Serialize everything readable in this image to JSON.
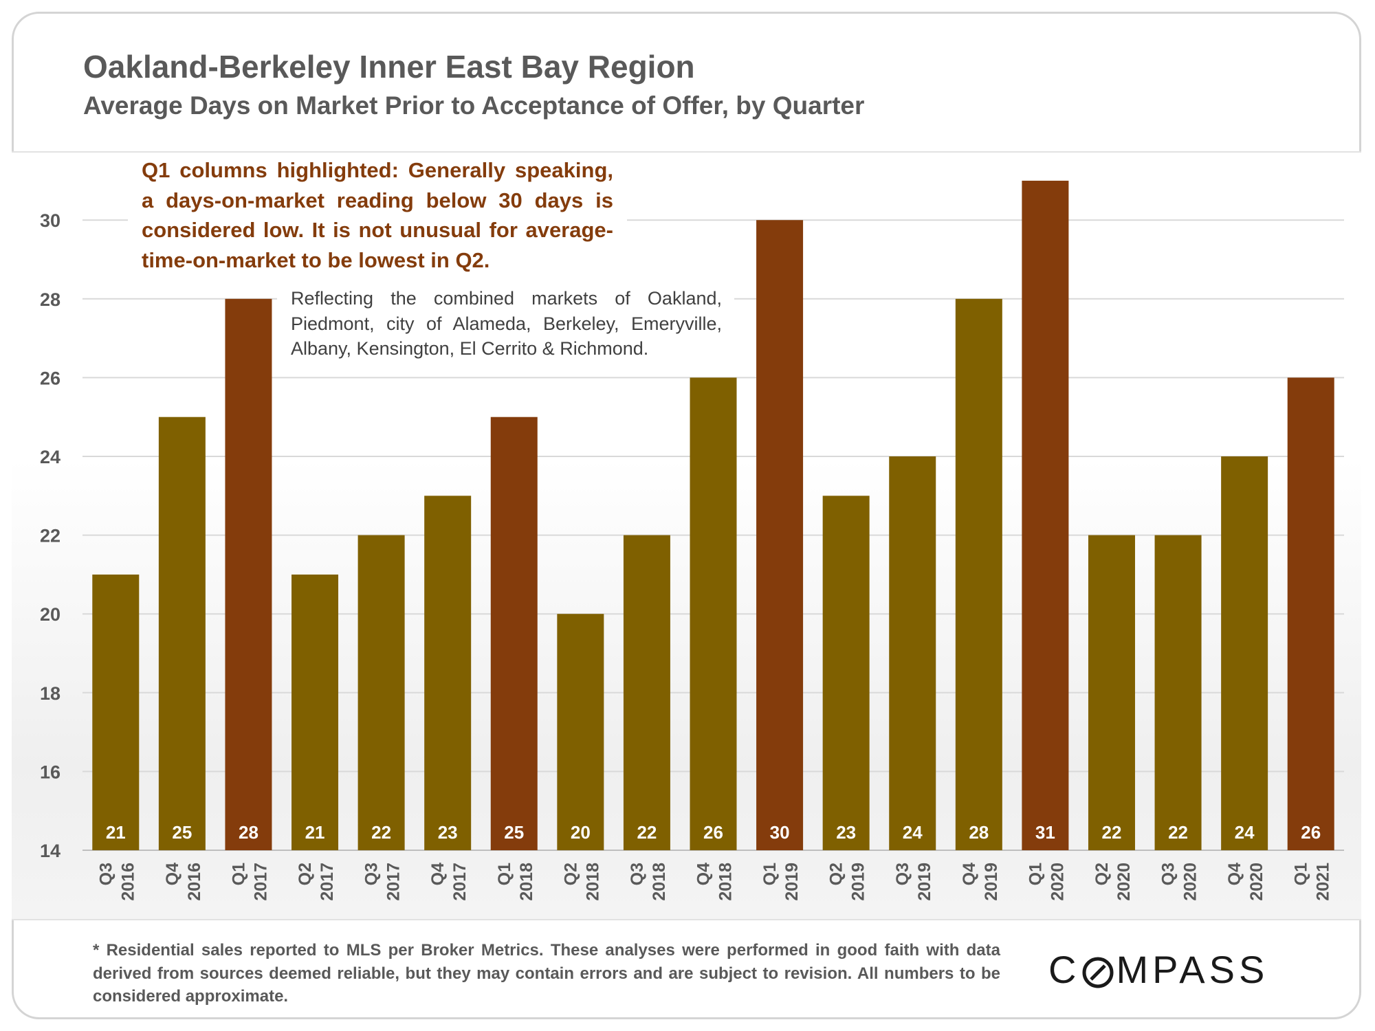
{
  "title": "Oakland-Berkeley Inner East Bay Region",
  "subtitle": "Average Days on Market Prior to Acceptance of Offer, by Quarter",
  "annotations": {
    "highlight_note": "Q1 columns highlighted: Generally speaking, a days-on-market reading below 30 days is considered low. It is not unusual for average-time-on-market to be lowest in Q2.",
    "region_note": "Reflecting the combined markets of Oakland, Piedmont, city of Alameda, Berkeley, Emeryville, Albany, Kensington, El Cerrito & Richmond."
  },
  "footnote": "* Residential sales reported to MLS per Broker Metrics. These analyses were performed in good faith with data derived from sources deemed reliable, but they may contain errors and are subject to revision. All numbers to  be considered approximate.",
  "logo": {
    "text_before": "C",
    "text_after": "MPASS",
    "icon": "compass-o-icon"
  },
  "colors": {
    "q1_bar": "#843c0c",
    "other_bar": "#7f6000",
    "grid": "#d9d9d9",
    "axis_text": "#595959",
    "bar_label": "#ffffff"
  },
  "chart_data": {
    "type": "bar",
    "title": "Oakland-Berkeley Inner East Bay Region",
    "subtitle": "Average Days on Market Prior to Acceptance of Offer, by Quarter",
    "xlabel": "",
    "ylabel": "",
    "ylim": [
      14,
      31
    ],
    "yticks": [
      14,
      16,
      18,
      20,
      22,
      24,
      26,
      28,
      30
    ],
    "grid": true,
    "legend": "none",
    "categories": [
      {
        "quarter": "Q3",
        "year": "2016"
      },
      {
        "quarter": "Q4",
        "year": "2016"
      },
      {
        "quarter": "Q1",
        "year": "2017"
      },
      {
        "quarter": "Q2",
        "year": "2017"
      },
      {
        "quarter": "Q3",
        "year": "2017"
      },
      {
        "quarter": "Q4",
        "year": "2017"
      },
      {
        "quarter": "Q1",
        "year": "2018"
      },
      {
        "quarter": "Q2",
        "year": "2018"
      },
      {
        "quarter": "Q3",
        "year": "2018"
      },
      {
        "quarter": "Q4",
        "year": "2018"
      },
      {
        "quarter": "Q1",
        "year": "2019"
      },
      {
        "quarter": "Q2",
        "year": "2019"
      },
      {
        "quarter": "Q3",
        "year": "2019"
      },
      {
        "quarter": "Q4",
        "year": "2019"
      },
      {
        "quarter": "Q1",
        "year": "2020"
      },
      {
        "quarter": "Q2",
        "year": "2020"
      },
      {
        "quarter": "Q3",
        "year": "2020"
      },
      {
        "quarter": "Q4",
        "year": "2020"
      },
      {
        "quarter": "Q1",
        "year": "2021"
      }
    ],
    "values": [
      21,
      25,
      28,
      21,
      22,
      23,
      25,
      20,
      22,
      26,
      30,
      23,
      24,
      28,
      31,
      22,
      22,
      24,
      26
    ],
    "highlighted": [
      false,
      false,
      true,
      false,
      false,
      false,
      true,
      false,
      false,
      false,
      true,
      false,
      false,
      false,
      true,
      false,
      false,
      false,
      true
    ]
  }
}
